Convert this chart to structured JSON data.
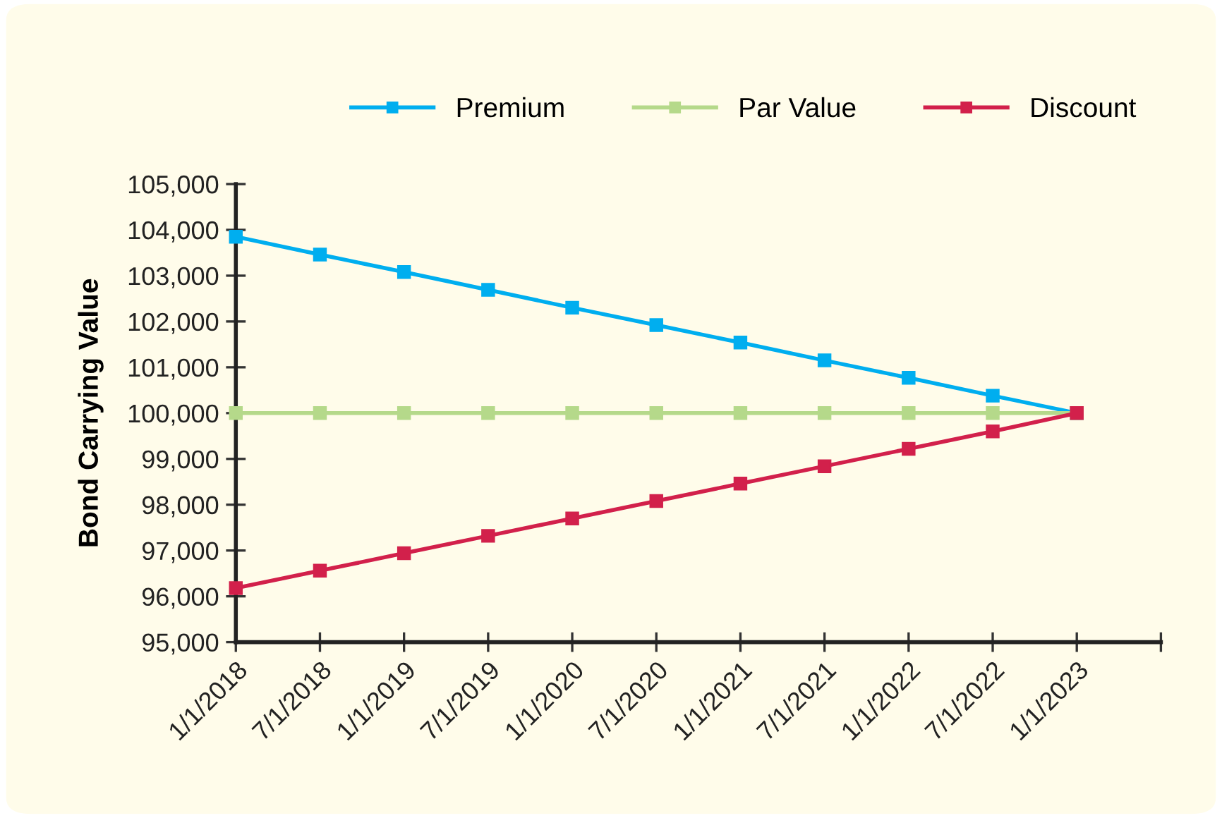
{
  "chart_data": {
    "type": "line",
    "ylabel": "Bond Carrying Value",
    "categories": [
      "1/1/2018",
      "7/1/2018",
      "1/1/2019",
      "7/1/2019",
      "1/1/2020",
      "7/1/2020",
      "1/1/2021",
      "7/1/2021",
      "1/1/2022",
      "7/1/2022",
      "1/1/2023",
      null
    ],
    "series": [
      {
        "name": "Premium",
        "color": "#00aeef",
        "values": [
          103850,
          103460,
          103080,
          102690,
          102300,
          101920,
          101540,
          101150,
          100770,
          100380,
          100000,
          null
        ]
      },
      {
        "name": "Par Value",
        "color": "#b5d98a",
        "values": [
          100000,
          100000,
          100000,
          100000,
          100000,
          100000,
          100000,
          100000,
          100000,
          100000,
          100000,
          null
        ]
      },
      {
        "name": "Discount",
        "color": "#d2204b",
        "values": [
          96180,
          96560,
          96940,
          97320,
          97700,
          98080,
          98460,
          98840,
          99220,
          99600,
          100000,
          null
        ]
      }
    ],
    "ylim": [
      95000,
      105000
    ],
    "yticks": [
      {
        "value": 95000,
        "label": "95,000"
      },
      {
        "value": 96000,
        "label": "96,000"
      },
      {
        "value": 97000,
        "label": "97,000"
      },
      {
        "value": 98000,
        "label": "98,000"
      },
      {
        "value": 99000,
        "label": "99,000"
      },
      {
        "value": 100000,
        "label": "100,000"
      },
      {
        "value": 101000,
        "label": "101,000"
      },
      {
        "value": 102000,
        "label": "102,000"
      },
      {
        "value": 103000,
        "label": "103,000"
      },
      {
        "value": 104000,
        "label": "104,000"
      },
      {
        "value": 105000,
        "label": "105,000"
      }
    ],
    "grid": false,
    "legend": "top right",
    "marker": "square",
    "line_style": "solid"
  }
}
